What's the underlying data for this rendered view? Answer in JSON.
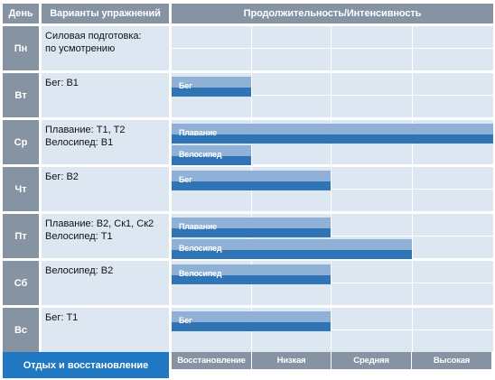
{
  "header": {
    "day": "День",
    "exercises": "Варианты упражнений",
    "duration": "Продолжительность/Интенсивность"
  },
  "days": [
    {
      "day": "Пн",
      "lines": [
        "Силовая подготовка:",
        "по усмотрению"
      ],
      "bars": []
    },
    {
      "day": "Вт",
      "lines": [
        "Бег: В1"
      ],
      "bars": [
        {
          "label": "Бег",
          "intensity_end": 1.0
        }
      ]
    },
    {
      "day": "Ср",
      "lines": [
        "Плавание: Т1, Т2",
        "Велосипед: В1"
      ],
      "bars": [
        {
          "label": "Плавание",
          "intensity_end": 4.0
        },
        {
          "label": "Велосипед",
          "intensity_end": 1.0
        }
      ]
    },
    {
      "day": "Чт",
      "lines": [
        "Бег: В2"
      ],
      "bars": [
        {
          "label": "Бег",
          "intensity_end": 2.0
        }
      ]
    },
    {
      "day": "Пт",
      "lines": [
        "Плавание: В2, Ск1, Ск2",
        "Велосипед: Т1"
      ],
      "bars": [
        {
          "label": "Плавание",
          "intensity_end": 2.0
        },
        {
          "label": "Велосипед",
          "intensity_end": 3.0
        }
      ]
    },
    {
      "day": "Сб",
      "lines": [
        "Велосипед: В2"
      ],
      "bars": [
        {
          "label": "Велосипед",
          "intensity_end": 2.0
        }
      ]
    },
    {
      "day": "Вс",
      "lines": [
        "Бег: Т1"
      ],
      "bars": [
        {
          "label": "Бег",
          "intensity_end": 2.0
        }
      ]
    }
  ],
  "footer": {
    "rest": "Отдых и восстановление",
    "intensity_levels": [
      "Восстановление",
      "Низкая",
      "Средняя",
      "Высокая"
    ]
  },
  "colors": {
    "header_bg": "#8593a3",
    "cell_bg": "#dde7f2",
    "bar_light": "#8fb1d7",
    "bar_dark": "#2f75b5",
    "rest_bg": "#1f78c1"
  }
}
